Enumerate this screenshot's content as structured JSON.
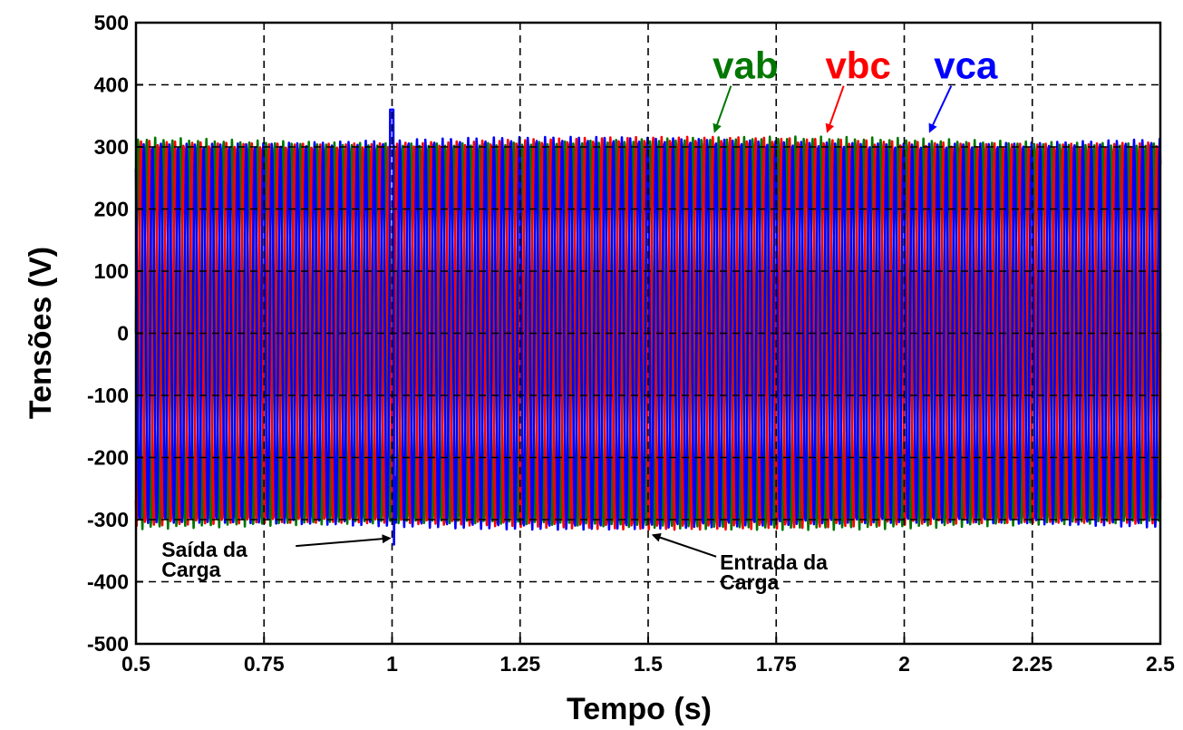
{
  "chart_data": {
    "type": "line",
    "xlabel": "Tempo (s)",
    "ylabel": "Tensões (V)",
    "xlim": [
      0.5,
      2.5
    ],
    "ylim": [
      -500,
      500
    ],
    "xticks": [
      "0.5",
      "0.75",
      "1",
      "1.25",
      "1.5",
      "1.75",
      "2",
      "2.25",
      "2.5"
    ],
    "xtick_values": [
      0.5,
      0.75,
      1.0,
      1.25,
      1.5,
      1.75,
      2.0,
      2.25,
      2.5
    ],
    "yticks": [
      "500",
      "400",
      "300",
      "200",
      "100",
      "0",
      "-100",
      "-200",
      "-300",
      "-400",
      "-500"
    ],
    "ytick_values": [
      500,
      400,
      300,
      200,
      100,
      0,
      -100,
      -200,
      -300,
      -400,
      -500
    ],
    "grid": true,
    "waveform": {
      "frequency_hz": 60,
      "amplitude_v": 311
    },
    "series": [
      {
        "name": "vab",
        "color": "#007700",
        "phase_deg": 0,
        "label_x": 1.69,
        "label_y": 410,
        "arrow_tip_x": 1.63,
        "arrow_tip_y": 325
      },
      {
        "name": "vbc",
        "color": "#ff0000",
        "phase_deg": -120,
        "label_x": 1.91,
        "label_y": 410,
        "arrow_tip_x": 1.85,
        "arrow_tip_y": 325
      },
      {
        "name": "vca",
        "color": "#0000ff",
        "phase_deg": 120,
        "label_x": 2.12,
        "label_y": 410,
        "arrow_tip_x": 2.05,
        "arrow_tip_y": 325
      }
    ],
    "events": [
      {
        "x": 1.0,
        "spike_v": 360,
        "spike_min_v": -340
      }
    ],
    "annotations": [
      {
        "line1": "Saída da",
        "line2": "Carga",
        "text_x": 0.55,
        "text_y": -360,
        "arrow_tip_x": 0.995,
        "arrow_tip_y": -330
      },
      {
        "line1": "Entrada da",
        "line2": "Carga",
        "text_x": 1.64,
        "text_y": -380,
        "arrow_tip_x": 1.51,
        "arrow_tip_y": -325
      }
    ]
  }
}
